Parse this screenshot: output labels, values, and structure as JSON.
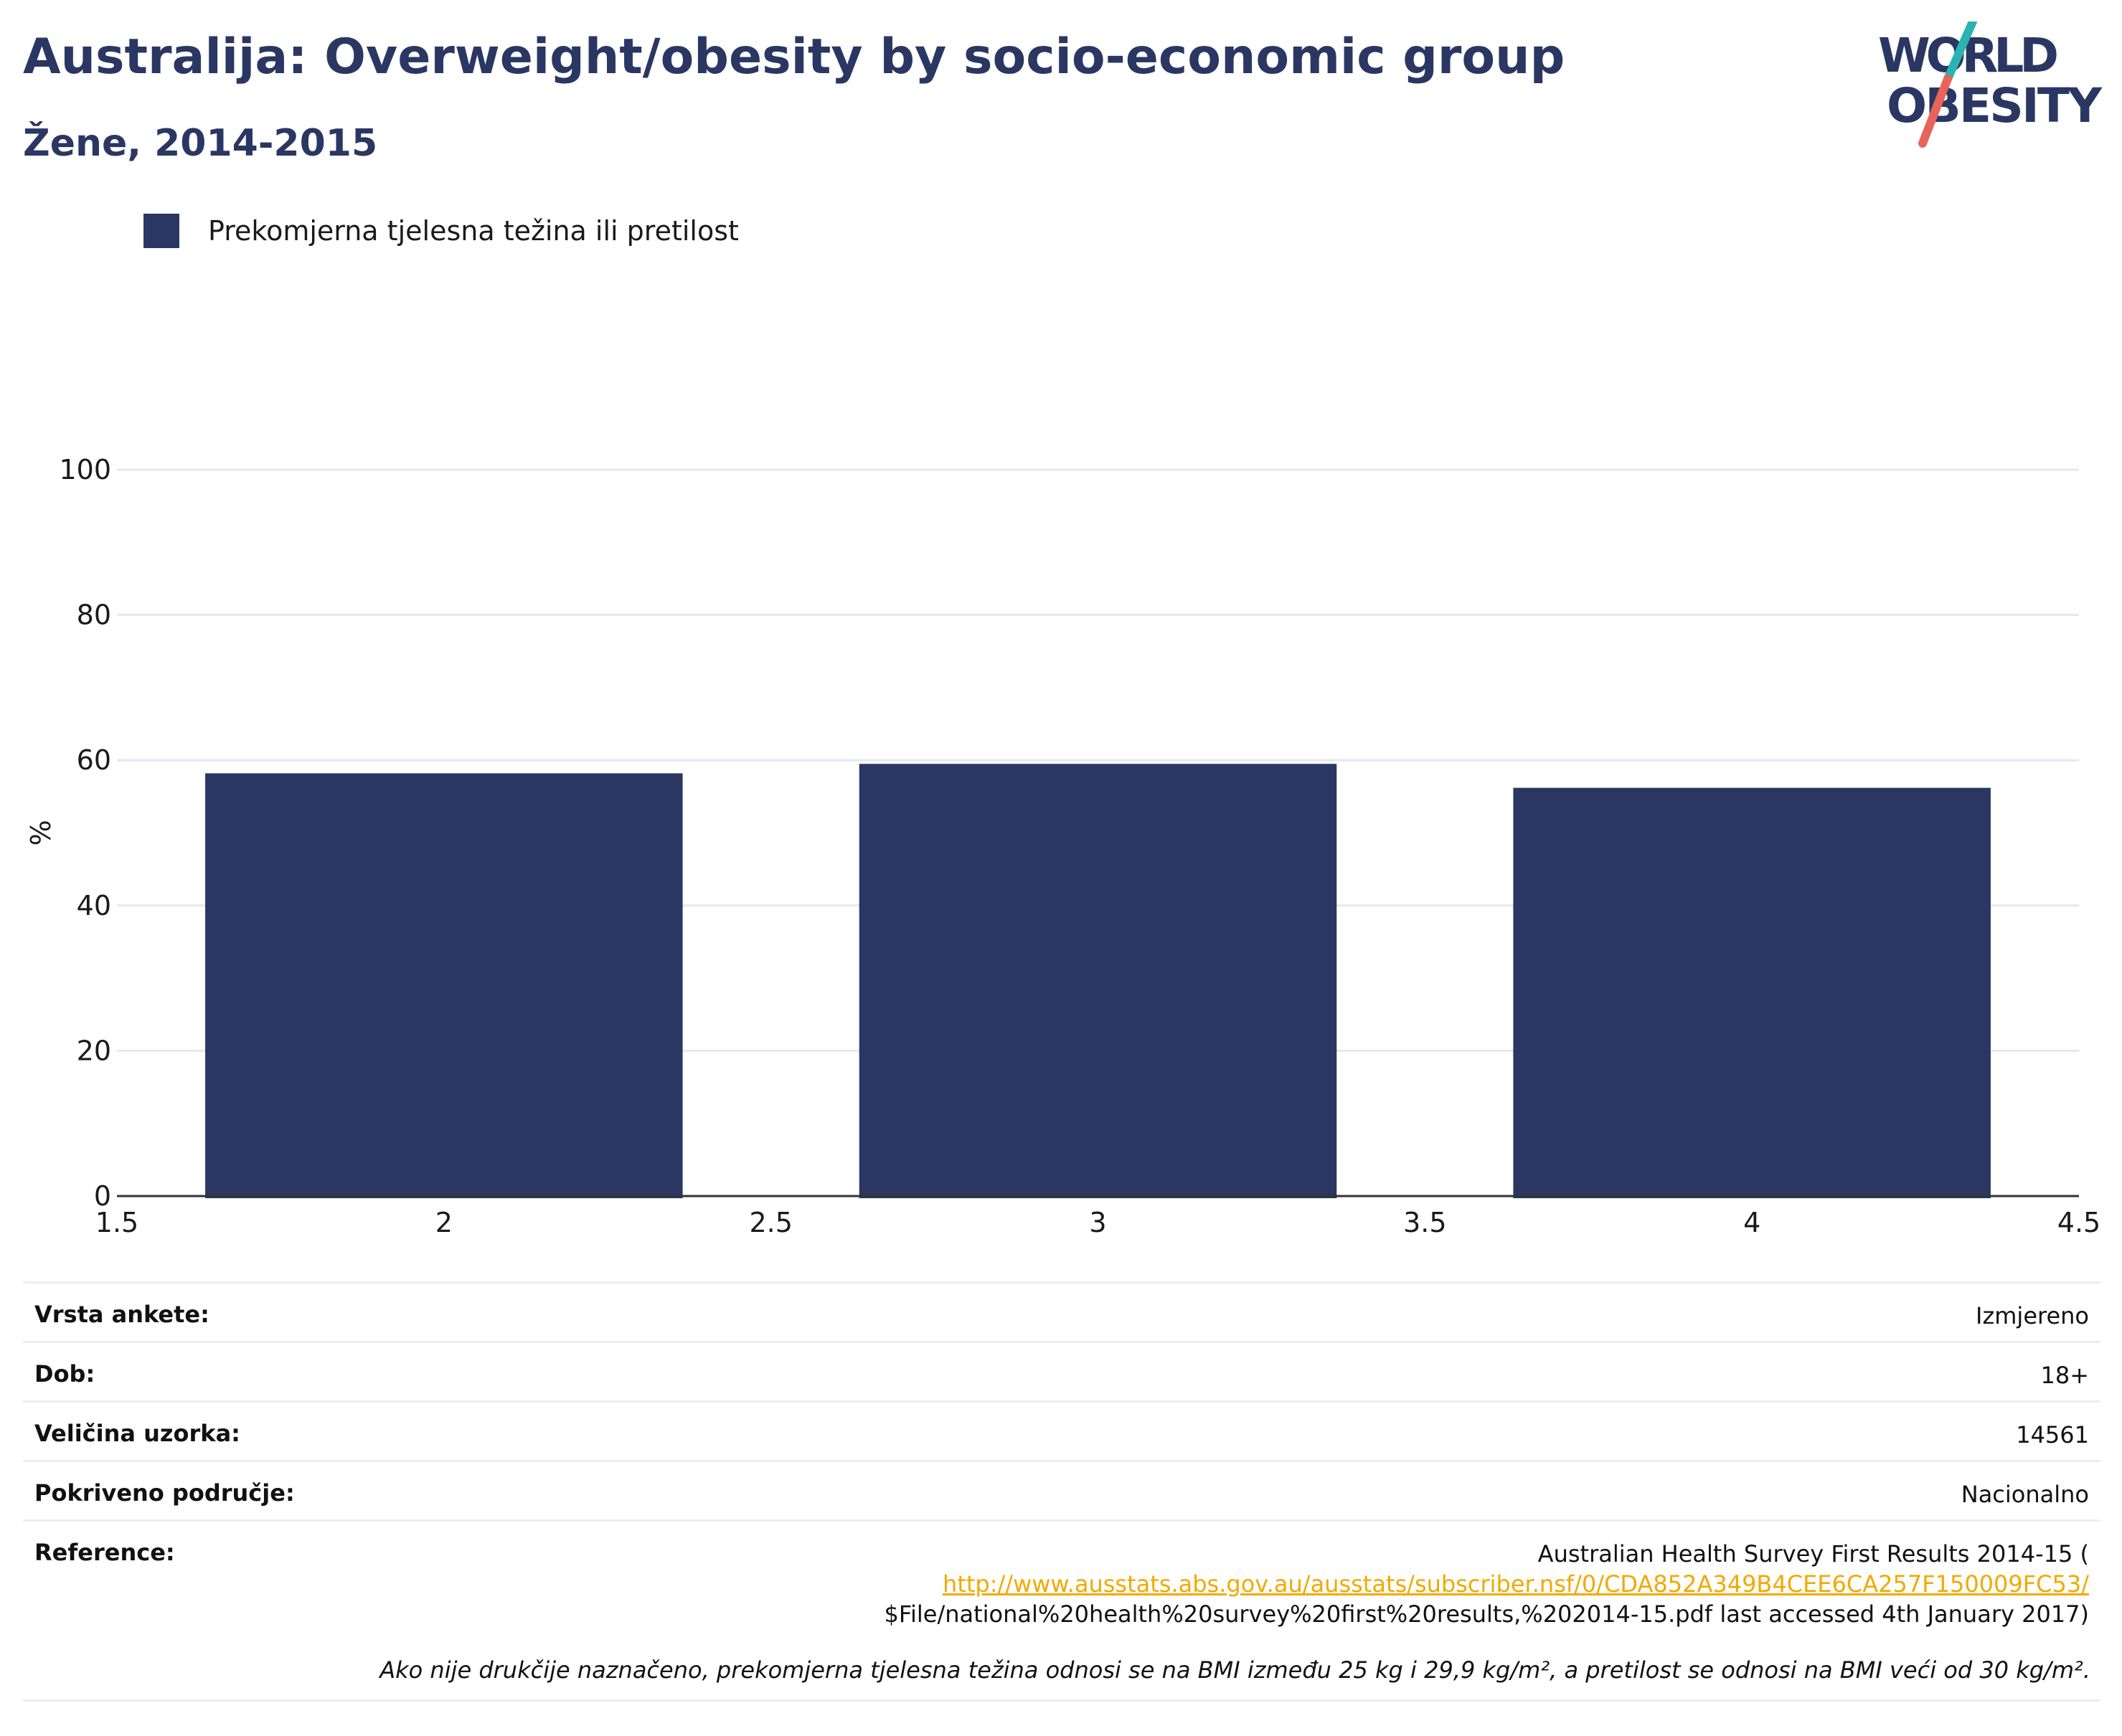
{
  "title": "Australija: Overweight/obesity by socio-economic group",
  "subtitle": "Žene, 2014-2015",
  "logo": {
    "line1": "WORLD",
    "line2": "OBESITY"
  },
  "colors": {
    "bar": "#2a3763",
    "title": "#2a3763",
    "grid": "#e6e8ef",
    "link": "#f2a900",
    "logo_teal": "#2ab3b1",
    "logo_red": "#e8645a"
  },
  "chart_data": {
    "type": "bar",
    "x": [
      2,
      3,
      4
    ],
    "series": [
      {
        "name": "Prekomjerna tjelesna težina ili pretilost",
        "values": [
          58.2,
          59.5,
          56.2
        ]
      }
    ],
    "ylabel": "%",
    "xlabel": "",
    "xlim": [
      1.5,
      4.5
    ],
    "ylim": [
      0,
      100
    ],
    "xticks": [
      "1.5",
      "2",
      "2.5",
      "3",
      "3.5",
      "4",
      "4.5"
    ],
    "yticks": [
      "0",
      "20",
      "40",
      "60",
      "80",
      "100"
    ],
    "bar_width": 0.73,
    "grid": true,
    "legend": "top-left"
  },
  "info": [
    {
      "key": "Vrsta ankete:",
      "value": "Izmjereno"
    },
    {
      "key": "Dob:",
      "value": "18+"
    },
    {
      "key": "Veličina uzorka:",
      "value": "14561"
    },
    {
      "key": "Pokriveno područje:",
      "value": "Nacionalno"
    }
  ],
  "reference": {
    "key": "Reference:",
    "text_before": "Australian Health Survey First Results 2014-15 (",
    "link": "http://www.ausstats.abs.gov.au/ausstats/subscriber.nsf/0/CDA852A349B4CEE6CA257F150009FC53/",
    "text_after": "$File/national%20health%20survey%20first%20results,%202014-15.pdf last accessed 4th January 2017)"
  },
  "footnote": "Ako nije drukčije naznačeno, prekomjerna tjelesna težina odnosi se na BMI između 25 kg i 29,9 kg/m², a pretilost se odnosi na BMI veći od 30 kg/m²."
}
